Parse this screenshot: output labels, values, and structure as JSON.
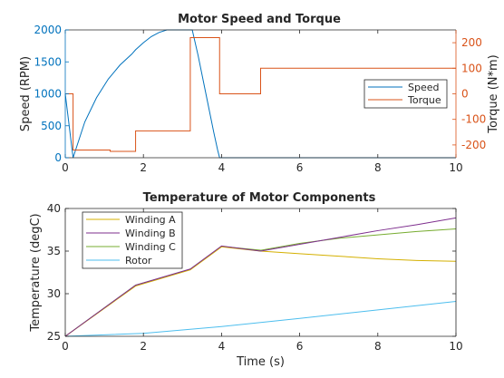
{
  "chart_data": [
    {
      "type": "line",
      "title": "Motor Speed and Torque",
      "xlabel": "",
      "xlim": [
        0,
        10
      ],
      "xticks": [
        "0",
        "2",
        "4",
        "6",
        "8",
        "10"
      ],
      "grid": false,
      "legend_position": "right",
      "colors": {
        "speed": "#0072bd",
        "torque": "#d95319",
        "axes": "#262626"
      },
      "y_left": {
        "label": "Speed (RPM)",
        "lim": [
          0,
          2000
        ],
        "ticks": [
          "0",
          "500",
          "1000",
          "1500",
          "2000"
        ],
        "color": "#0072bd"
      },
      "y_right": {
        "label": "Torque (N*m)",
        "lim": [
          -250,
          250
        ],
        "ticks": [
          "-200",
          "-100",
          "0",
          "100",
          "200"
        ],
        "color": "#d95319"
      },
      "series": [
        {
          "name": "Speed",
          "axis": "left",
          "color": "#0072bd",
          "x": [
            0,
            0.2,
            0.5,
            0.8,
            1.1,
            1.4,
            1.7,
            1.8,
            2.0,
            2.2,
            2.4,
            2.6,
            2.8,
            3.0,
            3.2,
            3.25,
            3.4,
            3.6,
            3.8,
            3.9,
            3.95,
            4.0,
            10
          ],
          "y": [
            1000,
            0,
            560,
            940,
            1230,
            1450,
            1620,
            1690,
            1800,
            1895,
            1960,
            2000,
            2000,
            2000,
            2000,
            2000,
            1600,
            1000,
            400,
            120,
            0,
            0,
            0
          ]
        },
        {
          "name": "Torque",
          "axis": "right",
          "color": "#d95319",
          "x": [
            0,
            0.2,
            0.2,
            1.15,
            1.15,
            1.8,
            1.8,
            3.2,
            3.2,
            3.95,
            3.95,
            5.0,
            5.0,
            10
          ],
          "y": [
            0,
            0,
            -220,
            -220,
            -225,
            -225,
            -145,
            -145,
            220,
            220,
            0,
            0,
            100,
            100
          ]
        }
      ]
    },
    {
      "type": "line",
      "title": "Temperature of Motor Components",
      "xlabel": "Time (s)",
      "ylabel": "Temperature (degC)",
      "xlim": [
        0,
        10
      ],
      "ylim": [
        25,
        40
      ],
      "xticks": [
        "0",
        "2",
        "4",
        "6",
        "8",
        "10"
      ],
      "yticks": [
        "25",
        "30",
        "35",
        "40"
      ],
      "grid": false,
      "legend_position": "top-left",
      "series": [
        {
          "name": "Winding A",
          "color": "#d4b000",
          "x": [
            0,
            1.8,
            3.2,
            4.0,
            5.0,
            6.0,
            7.0,
            8.0,
            9.0,
            10.0
          ],
          "y": [
            25,
            30.9,
            32.8,
            35.5,
            35.0,
            34.7,
            34.4,
            34.1,
            33.9,
            33.8
          ]
        },
        {
          "name": "Winding B",
          "color": "#7e2f8e",
          "x": [
            0,
            1.8,
            3.2,
            4.0,
            5.0,
            6.0,
            7.0,
            8.0,
            9.0,
            10.0
          ],
          "y": [
            25,
            31.0,
            32.9,
            35.6,
            35.0,
            35.8,
            36.6,
            37.4,
            38.1,
            38.9
          ]
        },
        {
          "name": "Winding C",
          "color": "#77ac30",
          "x": [
            0,
            1.8,
            3.2,
            4.0,
            5.0,
            6.0,
            7.0,
            8.0,
            9.0,
            10.0
          ],
          "y": [
            25,
            31.0,
            32.85,
            35.55,
            35.1,
            35.9,
            36.5,
            36.9,
            37.3,
            37.6
          ]
        },
        {
          "name": "Rotor",
          "color": "#4dbeee",
          "x": [
            0,
            2.0,
            4.0,
            6.0,
            8.0,
            10.0
          ],
          "y": [
            25,
            25.35,
            26.15,
            27.1,
            28.1,
            29.1
          ]
        }
      ]
    }
  ]
}
